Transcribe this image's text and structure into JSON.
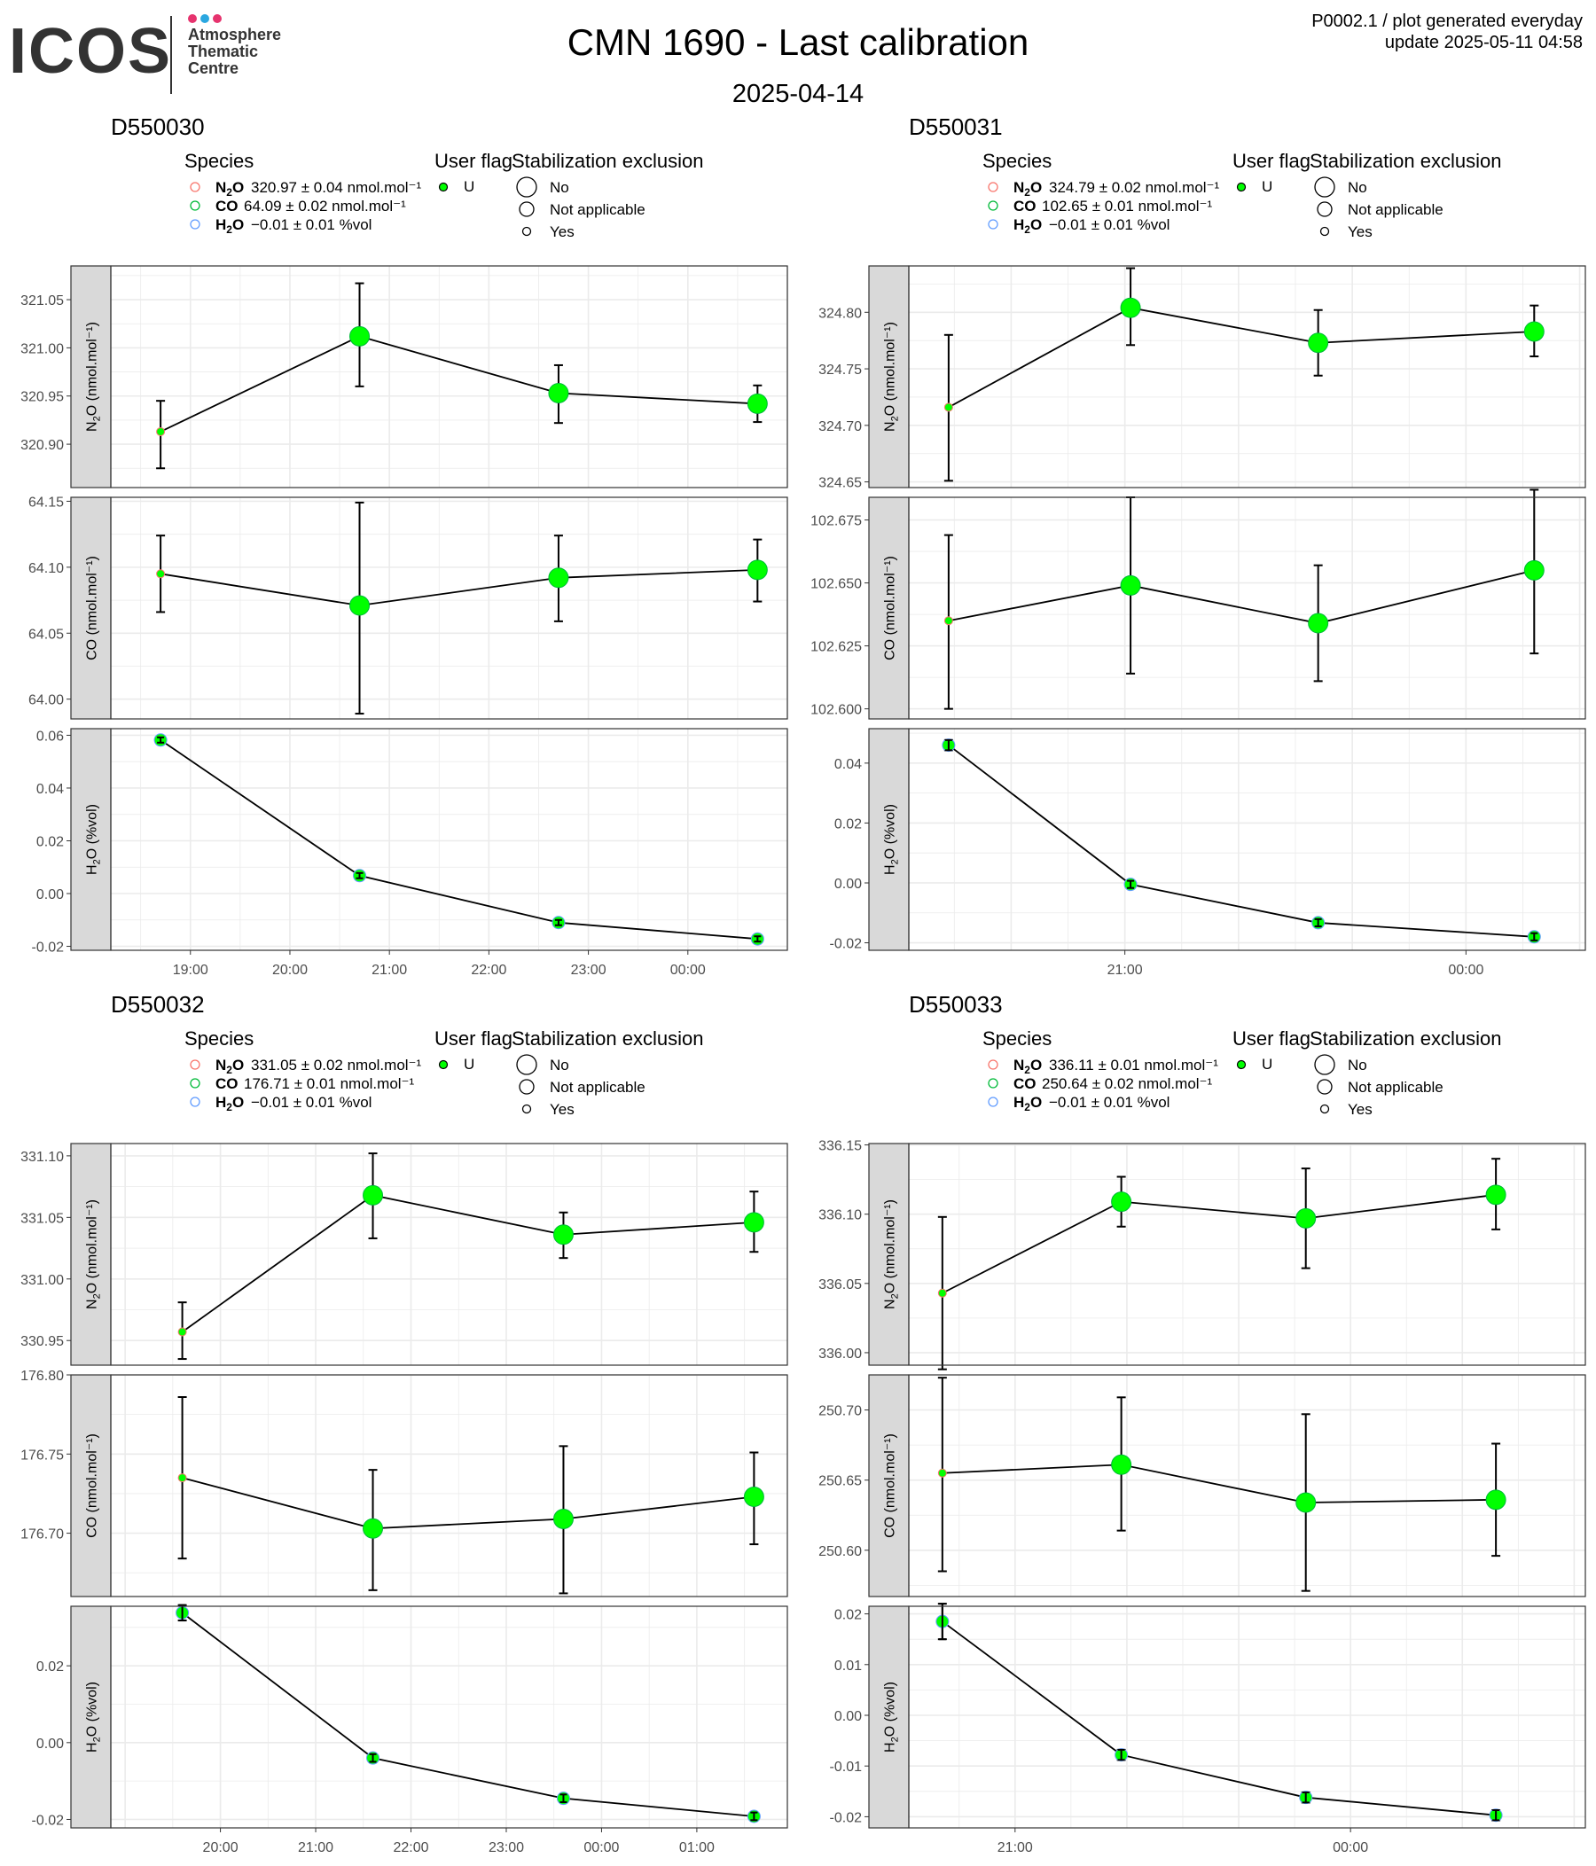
{
  "header": {
    "logo_text": "ICOS",
    "logo_lines": [
      "Atmosphere",
      "Thematic",
      "Centre"
    ],
    "logo_dot_colors": [
      "#e6336e",
      "#2aa7e0",
      "#e6336e"
    ],
    "title": "CMN 1690 - Last calibration",
    "date": "2025-04-14",
    "stamp_line1": "P0002.1 / plot generated everyday",
    "stamp_line2": "update  2025-05-11 04:58"
  },
  "legend_labels": {
    "species_title": "Species",
    "user_flag_title": "User flag",
    "stab_title": "Stabilization exclusion",
    "user_flag_value": "U",
    "stab_items": [
      "No",
      "Not applicable",
      "Yes"
    ]
  },
  "colors": {
    "point_fill": "#00ff00",
    "species_n2o": "#f8766d",
    "species_co": "#00ba38",
    "species_h2o": "#619cff",
    "strip_fill": "#d9d9d9",
    "grid": "#ebebeb"
  },
  "chart_data": [
    {
      "type": "scatter",
      "title": "D550030",
      "species_legend": [
        {
          "species": "N2O",
          "value": "320.97 ± 0.04 nmol.mol⁻¹"
        },
        {
          "species": "CO",
          "value": "64.09 ± 0.02 nmol.mol⁻¹"
        },
        {
          "species": "H2O",
          "value": "−0.01 ± 0.01 %vol"
        }
      ],
      "x_time_hours": [
        18.7,
        20.7,
        22.7,
        24.7
      ],
      "x_range_hours": [
        18.2,
        25.0
      ],
      "x_ticks": [
        {
          "h": 19,
          "label": "19:00"
        },
        {
          "h": 20,
          "label": "20:00"
        },
        {
          "h": 21,
          "label": "21:00"
        },
        {
          "h": 22,
          "label": "22:00"
        },
        {
          "h": 23,
          "label": "23:00"
        },
        {
          "h": 24,
          "label": "00:00"
        }
      ],
      "point_size": [
        "small",
        "large",
        "large",
        "large"
      ],
      "facets": [
        {
          "ylabel": "N2O (nmol.mol⁻¹)",
          "ylim": [
            320.855,
            321.085
          ],
          "yticks": [
            "321.05",
            "321.00",
            "320.95",
            "320.90"
          ],
          "y": [
            320.913,
            321.012,
            320.953,
            320.942
          ],
          "err_low": [
            320.875,
            320.96,
            320.922,
            320.923
          ],
          "err_high": [
            320.945,
            321.067,
            320.982,
            320.961
          ]
        },
        {
          "ylabel": "CO (nmol.mol⁻¹)",
          "ylim": [
            63.985,
            64.153
          ],
          "yticks": [
            "64.15",
            "64.10",
            "64.05",
            "64.00"
          ],
          "y": [
            64.095,
            64.071,
            64.092,
            64.098
          ],
          "err_low": [
            64.066,
            63.989,
            64.059,
            64.074
          ],
          "err_high": [
            64.124,
            64.149,
            64.124,
            64.121
          ]
        },
        {
          "ylabel": "H2O (%vol)",
          "ylim": [
            -0.0215,
            0.0625
          ],
          "yticks": [
            "0.06",
            "0.04",
            "0.02",
            "0.00",
            "-0.02"
          ],
          "y": [
            0.0582,
            0.0068,
            -0.011,
            -0.0172
          ],
          "err_low": [
            0.0572,
            0.0058,
            -0.012,
            -0.0182
          ],
          "err_high": [
            0.0592,
            0.0078,
            -0.01,
            -0.0162
          ]
        }
      ]
    },
    {
      "type": "scatter",
      "title": "D550031",
      "species_legend": [
        {
          "species": "N2O",
          "value": "324.79 ± 0.02 nmol.mol⁻¹"
        },
        {
          "species": "CO",
          "value": "102.65 ± 0.01 nmol.mol⁻¹"
        },
        {
          "species": "H2O",
          "value": "−0.01 ± 0.01 %vol"
        }
      ],
      "x_time_hours": [
        19.45,
        21.05,
        22.7,
        24.6
      ],
      "x_range_hours": [
        19.1,
        25.05
      ],
      "x_ticks": [
        {
          "h": 21,
          "label": "21:00"
        },
        {
          "h": 24,
          "label": "00:00"
        }
      ],
      "point_size": [
        "small",
        "large",
        "large",
        "large"
      ],
      "facets": [
        {
          "ylabel": "N2O (nmol.mol⁻¹)",
          "ylim": [
            324.645,
            324.841
          ],
          "yticks": [
            "324.80",
            "324.75",
            "324.70",
            "324.65"
          ],
          "y": [
            324.716,
            324.804,
            324.773,
            324.783
          ],
          "err_low": [
            324.651,
            324.771,
            324.744,
            324.761
          ],
          "err_high": [
            324.78,
            324.839,
            324.802,
            324.806
          ]
        },
        {
          "ylabel": "CO (nmol.mol⁻¹)",
          "ylim": [
            102.596,
            102.684
          ],
          "yticks": [
            "102.675",
            "102.650",
            "102.625",
            "102.600"
          ],
          "y": [
            102.635,
            102.649,
            102.634,
            102.655
          ],
          "err_low": [
            102.6,
            102.614,
            102.611,
            102.622
          ],
          "err_high": [
            102.669,
            102.684,
            102.657,
            102.687
          ]
        },
        {
          "ylabel": "H2O (%vol)",
          "ylim": [
            -0.0225,
            0.0515
          ],
          "yticks": [
            "0.04",
            "0.02",
            "0.00",
            "-0.02"
          ],
          "y": [
            0.046,
            -0.0005,
            -0.0133,
            -0.018
          ],
          "err_low": [
            0.0443,
            -0.0017,
            -0.0145,
            -0.0192
          ],
          "err_high": [
            0.0477,
            0.0007,
            -0.0121,
            -0.0168
          ]
        }
      ]
    },
    {
      "type": "scatter",
      "title": "D550032",
      "species_legend": [
        {
          "species": "N2O",
          "value": "331.05 ± 0.02 nmol.mol⁻¹"
        },
        {
          "species": "CO",
          "value": "176.71 ± 0.01 nmol.mol⁻¹"
        },
        {
          "species": "H2O",
          "value": "−0.01 ± 0.01 %vol"
        }
      ],
      "x_time_hours": [
        19.6,
        21.6,
        23.6,
        25.6
      ],
      "x_range_hours": [
        18.85,
        25.95
      ],
      "x_ticks": [
        {
          "h": 20,
          "label": "20:00"
        },
        {
          "h": 21,
          "label": "21:00"
        },
        {
          "h": 22,
          "label": "22:00"
        },
        {
          "h": 23,
          "label": "23:00"
        },
        {
          "h": 24,
          "label": "00:00"
        },
        {
          "h": 25,
          "label": "01:00"
        }
      ],
      "point_size": [
        "small",
        "large",
        "large",
        "large"
      ],
      "facets": [
        {
          "ylabel": "N2O (nmol.mol⁻¹)",
          "ylim": [
            330.93,
            331.11
          ],
          "yticks": [
            "331.10",
            "331.05",
            "331.00",
            "330.95"
          ],
          "y": [
            330.957,
            331.068,
            331.036,
            331.046
          ],
          "err_low": [
            330.935,
            331.033,
            331.017,
            331.022
          ],
          "err_high": [
            330.981,
            331.102,
            331.054,
            331.071
          ]
        },
        {
          "ylabel": "CO (nmol.mol⁻¹)",
          "ylim": [
            176.66,
            176.8
          ],
          "yticks": [
            "176.80",
            "176.75",
            "176.70"
          ],
          "y": [
            176.735,
            176.703,
            176.709,
            176.723
          ],
          "err_low": [
            176.684,
            176.664,
            176.662,
            176.693
          ],
          "err_high": [
            176.786,
            176.74,
            176.755,
            176.751
          ]
        },
        {
          "ylabel": "H2O (%vol)",
          "ylim": [
            -0.0222,
            0.0355
          ],
          "yticks": [
            "0.02",
            "0.00",
            "-0.02"
          ],
          "y": [
            0.0338,
            -0.004,
            -0.0145,
            -0.0192
          ],
          "err_low": [
            0.0318,
            -0.005,
            -0.0155,
            -0.0202
          ],
          "err_high": [
            0.0358,
            -0.003,
            -0.0135,
            -0.0182
          ]
        }
      ]
    },
    {
      "type": "scatter",
      "title": "D550033",
      "species_legend": [
        {
          "species": "N2O",
          "value": "336.11 ± 0.01 nmol.mol⁻¹"
        },
        {
          "species": "CO",
          "value": "250.64 ± 0.02 nmol.mol⁻¹"
        },
        {
          "species": "H2O",
          "value": "−0.01 ± 0.01 %vol"
        }
      ],
      "x_time_hours": [
        20.35,
        21.95,
        23.6,
        25.3
      ],
      "x_range_hours": [
        20.05,
        26.1
      ],
      "x_ticks": [
        {
          "h": 21,
          "label": "21:00"
        },
        {
          "h": 24,
          "label": "00:00"
        }
      ],
      "point_size": [
        "small",
        "large",
        "large",
        "large"
      ],
      "facets": [
        {
          "ylabel": "N2O (nmol.mol⁻¹)",
          "ylim": [
            335.991,
            336.151
          ],
          "yticks": [
            "336.15",
            "336.10",
            "336.05",
            "336.00"
          ],
          "y": [
            336.043,
            336.109,
            336.097,
            336.114
          ],
          "err_low": [
            335.988,
            336.091,
            336.061,
            336.089
          ],
          "err_high": [
            336.098,
            336.127,
            336.133,
            336.14
          ]
        },
        {
          "ylabel": "CO (nmol.mol⁻¹)",
          "ylim": [
            250.567,
            250.725
          ],
          "yticks": [
            "250.70",
            "250.65",
            "250.60"
          ],
          "y": [
            250.655,
            250.661,
            250.634,
            250.636
          ],
          "err_low": [
            250.585,
            250.614,
            250.571,
            250.596
          ],
          "err_high": [
            250.723,
            250.709,
            250.697,
            250.676
          ]
        },
        {
          "ylabel": "H2O (%vol)",
          "ylim": [
            -0.0222,
            0.0215
          ],
          "yticks": [
            "0.02",
            "0.01",
            "0.00",
            "-0.01",
            "-0.02"
          ],
          "y": [
            0.0185,
            -0.0078,
            -0.0162,
            -0.0197
          ],
          "err_low": [
            0.015,
            -0.0088,
            -0.0172,
            -0.0207
          ],
          "err_high": [
            0.022,
            -0.0068,
            -0.0152,
            -0.0187
          ]
        }
      ]
    }
  ]
}
